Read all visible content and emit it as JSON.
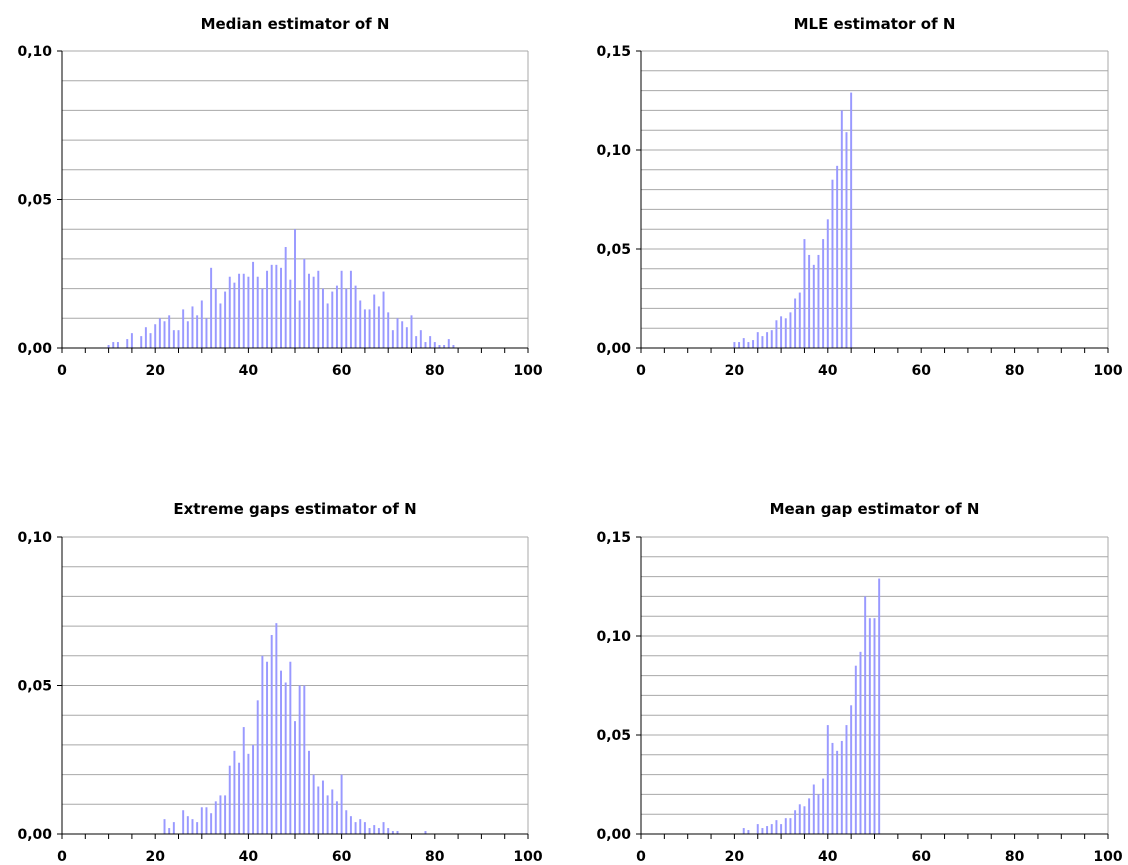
{
  "chart_data": [
    {
      "type": "bar",
      "title": "Median estimator of N",
      "xlim": [
        0,
        100
      ],
      "ylim": [
        0,
        0.1
      ],
      "x_ticks": [
        "0",
        "20",
        "40",
        "60",
        "80",
        "100"
      ],
      "y_ticks": [
        "0,00",
        "0,05",
        "0,10"
      ],
      "grid": "horizontal",
      "bar_color": "#9999ff",
      "x": [
        10,
        11,
        12,
        13,
        14,
        15,
        16,
        17,
        18,
        19,
        20,
        21,
        22,
        23,
        24,
        25,
        26,
        27,
        28,
        29,
        30,
        31,
        32,
        33,
        34,
        35,
        36,
        37,
        38,
        39,
        40,
        41,
        42,
        43,
        44,
        45,
        46,
        47,
        48,
        49,
        50,
        51,
        52,
        53,
        54,
        55,
        56,
        57,
        58,
        59,
        60,
        61,
        62,
        63,
        64,
        65,
        66,
        67,
        68,
        69,
        70,
        71,
        72,
        73,
        74,
        75,
        76,
        77,
        78,
        79,
        80,
        81,
        82,
        83,
        84
      ],
      "values": [
        0.001,
        0.002,
        0.002,
        0,
        0.003,
        0.005,
        0,
        0.004,
        0.007,
        0.005,
        0.008,
        0.01,
        0.009,
        0.011,
        0.006,
        0.006,
        0.013,
        0.009,
        0.014,
        0.011,
        0.016,
        0.01,
        0.027,
        0.02,
        0.015,
        0.019,
        0.024,
        0.022,
        0.025,
        0.025,
        0.024,
        0.029,
        0.024,
        0.02,
        0.026,
        0.028,
        0.028,
        0.027,
        0.034,
        0.023,
        0.04,
        0.016,
        0.03,
        0.025,
        0.024,
        0.026,
        0.02,
        0.015,
        0.019,
        0.021,
        0.026,
        0.02,
        0.026,
        0.021,
        0.016,
        0.013,
        0.013,
        0.018,
        0.014,
        0.019,
        0.012,
        0.006,
        0.01,
        0.009,
        0.007,
        0.011,
        0.004,
        0.006,
        0.002,
        0.004,
        0.002,
        0.001,
        0.001,
        0.003,
        0.001
      ]
    },
    {
      "type": "bar",
      "title": "MLE estimator of N",
      "xlim": [
        0,
        100
      ],
      "ylim": [
        0,
        0.15
      ],
      "x_ticks": [
        "0",
        "20",
        "40",
        "60",
        "80",
        "100"
      ],
      "y_ticks": [
        "0,00",
        "0,05",
        "0,10",
        "0,15"
      ],
      "grid": "horizontal",
      "bar_color": "#9999ff",
      "x": [
        20,
        21,
        22,
        23,
        24,
        25,
        26,
        27,
        28,
        29,
        30,
        31,
        32,
        33,
        34,
        35,
        36,
        37,
        38,
        39,
        40,
        41,
        42,
        43,
        44,
        45
      ],
      "values": [
        0.003,
        0.003,
        0.005,
        0.003,
        0.004,
        0.008,
        0.006,
        0.008,
        0.009,
        0.014,
        0.016,
        0.015,
        0.018,
        0.025,
        0.028,
        0.055,
        0.047,
        0.042,
        0.047,
        0.055,
        0.065,
        0.085,
        0.092,
        0.12,
        0.109,
        0.129
      ]
    },
    {
      "type": "bar",
      "title": "Extreme gaps estimator of N",
      "xlim": [
        0,
        100
      ],
      "ylim": [
        0,
        0.1
      ],
      "x_ticks": [
        "0",
        "20",
        "40",
        "60",
        "80",
        "100"
      ],
      "y_ticks": [
        "0,00",
        "0,05",
        "0,10"
      ],
      "grid": "horizontal",
      "bar_color": "#9999ff",
      "x": [
        22,
        23,
        24,
        25,
        26,
        27,
        28,
        29,
        30,
        31,
        32,
        33,
        34,
        35,
        36,
        37,
        38,
        39,
        40,
        41,
        42,
        43,
        44,
        45,
        46,
        47,
        48,
        49,
        50,
        51,
        52,
        53,
        54,
        55,
        56,
        57,
        58,
        59,
        60,
        61,
        62,
        63,
        64,
        65,
        66,
        67,
        68,
        69,
        70,
        71,
        72,
        73,
        74,
        75,
        76,
        77,
        78
      ],
      "values": [
        0.005,
        0.002,
        0.004,
        0,
        0.008,
        0.006,
        0.005,
        0.004,
        0.009,
        0.009,
        0.007,
        0.011,
        0.013,
        0.013,
        0.023,
        0.028,
        0.024,
        0.036,
        0.027,
        0.03,
        0.045,
        0.06,
        0.058,
        0.067,
        0.071,
        0.055,
        0.051,
        0.058,
        0.038,
        0.05,
        0.05,
        0.028,
        0.02,
        0.016,
        0.018,
        0.013,
        0.015,
        0.011,
        0.02,
        0.008,
        0.006,
        0.004,
        0.005,
        0.004,
        0.002,
        0.003,
        0.002,
        0.004,
        0.002,
        0.001,
        0.001,
        0,
        0,
        0,
        0,
        0,
        0.001
      ]
    },
    {
      "type": "bar",
      "title": "Mean gap estimator of N",
      "xlim": [
        0,
        100
      ],
      "ylim": [
        0,
        0.15
      ],
      "x_ticks": [
        "0",
        "20",
        "40",
        "60",
        "80",
        "100"
      ],
      "y_ticks": [
        "0,00",
        "0,05",
        "0,10",
        "0,15"
      ],
      "grid": "horizontal",
      "bar_color": "#9999ff",
      "x": [
        22,
        23,
        24,
        25,
        26,
        27,
        28,
        29,
        30,
        31,
        32,
        33,
        34,
        35,
        36,
        37,
        38,
        39,
        40,
        41,
        42,
        43,
        44,
        45,
        46,
        47,
        48,
        49,
        50,
        51
      ],
      "values": [
        0.003,
        0.002,
        0,
        0.005,
        0.003,
        0.004,
        0.005,
        0.007,
        0.005,
        0.008,
        0.008,
        0.012,
        0.015,
        0.014,
        0.018,
        0.025,
        0.02,
        0.028,
        0.055,
        0.046,
        0.042,
        0.047,
        0.055,
        0.065,
        0.085,
        0.092,
        0.12,
        0.109,
        0.109,
        0.129
      ]
    }
  ]
}
